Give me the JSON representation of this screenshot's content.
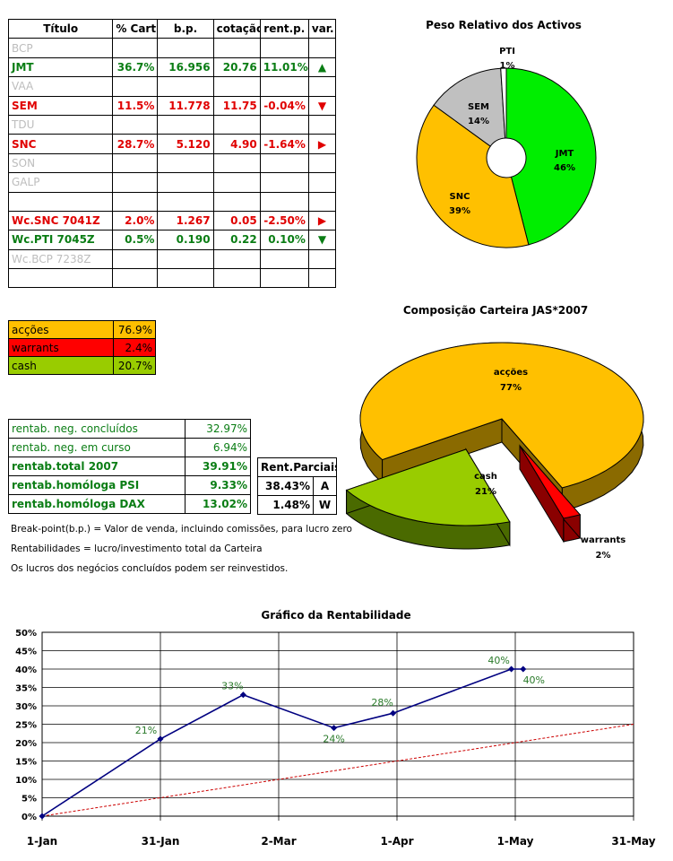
{
  "portfolio": {
    "headers": [
      "Título",
      "% Cart",
      "b.p.",
      "cotação",
      "rent.p.",
      "var."
    ],
    "rows": [
      {
        "name": "BCP",
        "pct": "",
        "bp": "",
        "cot": "",
        "rent": "",
        "var": "",
        "color": "gray"
      },
      {
        "name": "JMT",
        "pct": "36.7%",
        "bp": "16.956",
        "cot": "20.76",
        "rent": "11.01%",
        "var": "▲",
        "color": "green"
      },
      {
        "name": "VAA",
        "pct": "",
        "bp": "",
        "cot": "",
        "rent": "",
        "var": "",
        "color": "gray"
      },
      {
        "name": "SEM",
        "pct": "11.5%",
        "bp": "11.778",
        "cot": "11.75",
        "rent": "-0.04%",
        "var": "▼",
        "color": "red"
      },
      {
        "name": "TDU",
        "pct": "",
        "bp": "",
        "cot": "",
        "rent": "",
        "var": "",
        "color": "gray"
      },
      {
        "name": "SNC",
        "pct": "28.7%",
        "bp": "5.120",
        "cot": "4.90",
        "rent": "-1.64%",
        "var": "▶",
        "color": "red"
      },
      {
        "name": "SON",
        "pct": "",
        "bp": "",
        "cot": "",
        "rent": "",
        "var": "",
        "color": "gray"
      },
      {
        "name": "GALP",
        "pct": "",
        "bp": "",
        "cot": "",
        "rent": "",
        "var": "",
        "color": "gray"
      },
      {
        "name": "",
        "pct": "",
        "bp": "",
        "cot": "",
        "rent": "",
        "var": "",
        "color": "gray"
      },
      {
        "name": "Wc.SNC 7041Z",
        "pct": "2.0%",
        "bp": "1.267",
        "cot": "0.05",
        "rent": "-2.50%",
        "var": "▶",
        "color": "red"
      },
      {
        "name": "Wc.PTI 7045Z",
        "pct": "0.5%",
        "bp": "0.190",
        "cot": "0.22",
        "rent": "0.10%",
        "var": "▼",
        "color": "green"
      },
      {
        "name": "Wc.BCP 7238Z",
        "pct": "",
        "bp": "",
        "cot": "",
        "rent": "",
        "var": "",
        "color": "gray"
      },
      {
        "name": "",
        "pct": "",
        "bp": "",
        "cot": "",
        "rent": "",
        "var": "",
        "color": "gray"
      }
    ]
  },
  "allocation": [
    {
      "label": "acções",
      "value": "76.9%",
      "color": "#ffc000"
    },
    {
      "label": "warrants",
      "value": "2.4%",
      "color": "#ff0000"
    },
    {
      "label": "cash",
      "value": "20.7%",
      "color": "#99cc00"
    }
  ],
  "returns": [
    {
      "label": "rentab. neg. concluídos",
      "value": "32.97%",
      "bold": false
    },
    {
      "label": "rentab. neg. em curso",
      "value": "6.94%",
      "bold": false
    },
    {
      "label": "rentab.total 2007",
      "value": "39.91%",
      "bold": true
    },
    {
      "label": "rentab.homóloga PSI",
      "value": "9.33%",
      "bold": true
    },
    {
      "label": "rentab.homóloga DAX",
      "value": "13.02%",
      "bold": true
    }
  ],
  "partial": {
    "header": "Rent.Parciais",
    "rows": [
      {
        "value": "38.43%",
        "tag": "A"
      },
      {
        "value": "1.48%",
        "tag": "W"
      }
    ]
  },
  "notes": {
    "n1": "Break-point(b.p.) = Valor de venda, incluindo comissões, para lucro zero",
    "n2": "Rentabilidades = lucro/investimento total da Carteira",
    "n3": "Os lucros dos negócios concluídos podem ser reinvestidos."
  },
  "chart_data": [
    {
      "type": "pie",
      "title": "Peso Relativo dos Activos",
      "categories": [
        "JMT",
        "SNC",
        "SEM",
        "PTI"
      ],
      "values": [
        46,
        39,
        14,
        1
      ],
      "labels": [
        "46%",
        "39%",
        "14%",
        "1%"
      ],
      "colors": [
        "#00ee00",
        "#ffc000",
        "#c0c0c0",
        "#ffffff"
      ],
      "donut": true
    },
    {
      "type": "pie",
      "title": "Composição Carteira JAS*2007",
      "categories": [
        "acções",
        "cash",
        "warrants"
      ],
      "values": [
        77,
        21,
        2
      ],
      "labels": [
        "77%",
        "21%",
        "2%"
      ],
      "colors": [
        "#ffc000",
        "#99cc00",
        "#ff0000"
      ],
      "style": "3d-exploded"
    },
    {
      "type": "line",
      "title": "Gráfico da Rentabilidade",
      "x_ticks": [
        "1-Jan",
        "31-Jan",
        "2-Mar",
        "1-Apr",
        "1-May",
        "31-May"
      ],
      "y_ticks": [
        "0%",
        "5%",
        "10%",
        "15%",
        "20%",
        "25%",
        "30%",
        "35%",
        "40%",
        "45%",
        "50%"
      ],
      "ylim": [
        0,
        50
      ],
      "xlim": [
        "2007-01-01",
        "2007-05-31"
      ],
      "grid": true,
      "series": [
        {
          "x": [
            "2007-01-01",
            "2007-01-31",
            "2007-02-21",
            "2007-03-16",
            "2007-03-31",
            "2007-04-30",
            "2007-05-03"
          ],
          "y": [
            0,
            21,
            33,
            24,
            28,
            40,
            40
          ],
          "labels": [
            "",
            "21%",
            "33%",
            "24%",
            "28%",
            "40%",
            "40%"
          ],
          "color": "#000080",
          "style": "solid"
        },
        {
          "x": [
            "2007-01-01",
            "2007-05-31"
          ],
          "y": [
            0,
            25
          ],
          "color": "#cc0000",
          "style": "dotted"
        }
      ]
    }
  ]
}
